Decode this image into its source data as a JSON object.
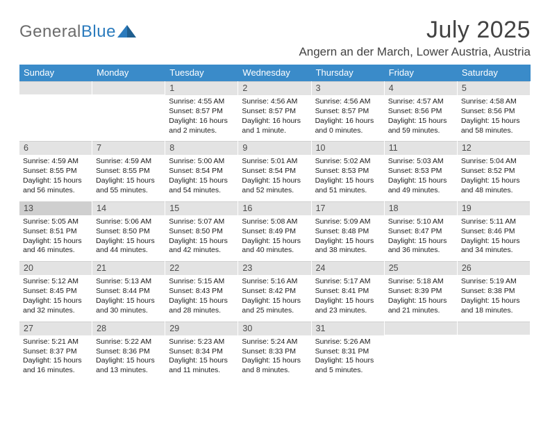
{
  "logo": {
    "text1": "General",
    "text2": "Blue"
  },
  "title": "July 2025",
  "location": "Angern an der March, Lower Austria, Austria",
  "colors": {
    "header_bg": "#3a8bc9",
    "header_text": "#ffffff",
    "daynum_bg": "#e3e3e3",
    "daynum_today_bg": "#cfcfcf",
    "logo_gray": "#6b6b6b",
    "logo_blue": "#2b7bbd",
    "text": "#1a1a1a"
  },
  "day_names": [
    "Sunday",
    "Monday",
    "Tuesday",
    "Wednesday",
    "Thursday",
    "Friday",
    "Saturday"
  ],
  "weeks": [
    [
      {
        "empty": true
      },
      {
        "empty": true
      },
      {
        "n": "1",
        "sunrise": "4:55 AM",
        "sunset": "8:57 PM",
        "daylight": "16 hours and 2 minutes."
      },
      {
        "n": "2",
        "sunrise": "4:56 AM",
        "sunset": "8:57 PM",
        "daylight": "16 hours and 1 minute."
      },
      {
        "n": "3",
        "sunrise": "4:56 AM",
        "sunset": "8:57 PM",
        "daylight": "16 hours and 0 minutes."
      },
      {
        "n": "4",
        "sunrise": "4:57 AM",
        "sunset": "8:56 PM",
        "daylight": "15 hours and 59 minutes."
      },
      {
        "n": "5",
        "sunrise": "4:58 AM",
        "sunset": "8:56 PM",
        "daylight": "15 hours and 58 minutes."
      }
    ],
    [
      {
        "n": "6",
        "sunrise": "4:59 AM",
        "sunset": "8:55 PM",
        "daylight": "15 hours and 56 minutes."
      },
      {
        "n": "7",
        "sunrise": "4:59 AM",
        "sunset": "8:55 PM",
        "daylight": "15 hours and 55 minutes."
      },
      {
        "n": "8",
        "sunrise": "5:00 AM",
        "sunset": "8:54 PM",
        "daylight": "15 hours and 54 minutes."
      },
      {
        "n": "9",
        "sunrise": "5:01 AM",
        "sunset": "8:54 PM",
        "daylight": "15 hours and 52 minutes."
      },
      {
        "n": "10",
        "sunrise": "5:02 AM",
        "sunset": "8:53 PM",
        "daylight": "15 hours and 51 minutes."
      },
      {
        "n": "11",
        "sunrise": "5:03 AM",
        "sunset": "8:53 PM",
        "daylight": "15 hours and 49 minutes."
      },
      {
        "n": "12",
        "sunrise": "5:04 AM",
        "sunset": "8:52 PM",
        "daylight": "15 hours and 48 minutes."
      }
    ],
    [
      {
        "n": "13",
        "today": true,
        "sunrise": "5:05 AM",
        "sunset": "8:51 PM",
        "daylight": "15 hours and 46 minutes."
      },
      {
        "n": "14",
        "sunrise": "5:06 AM",
        "sunset": "8:50 PM",
        "daylight": "15 hours and 44 minutes."
      },
      {
        "n": "15",
        "sunrise": "5:07 AM",
        "sunset": "8:50 PM",
        "daylight": "15 hours and 42 minutes."
      },
      {
        "n": "16",
        "sunrise": "5:08 AM",
        "sunset": "8:49 PM",
        "daylight": "15 hours and 40 minutes."
      },
      {
        "n": "17",
        "sunrise": "5:09 AM",
        "sunset": "8:48 PM",
        "daylight": "15 hours and 38 minutes."
      },
      {
        "n": "18",
        "sunrise": "5:10 AM",
        "sunset": "8:47 PM",
        "daylight": "15 hours and 36 minutes."
      },
      {
        "n": "19",
        "sunrise": "5:11 AM",
        "sunset": "8:46 PM",
        "daylight": "15 hours and 34 minutes."
      }
    ],
    [
      {
        "n": "20",
        "sunrise": "5:12 AM",
        "sunset": "8:45 PM",
        "daylight": "15 hours and 32 minutes."
      },
      {
        "n": "21",
        "sunrise": "5:13 AM",
        "sunset": "8:44 PM",
        "daylight": "15 hours and 30 minutes."
      },
      {
        "n": "22",
        "sunrise": "5:15 AM",
        "sunset": "8:43 PM",
        "daylight": "15 hours and 28 minutes."
      },
      {
        "n": "23",
        "sunrise": "5:16 AM",
        "sunset": "8:42 PM",
        "daylight": "15 hours and 25 minutes."
      },
      {
        "n": "24",
        "sunrise": "5:17 AM",
        "sunset": "8:41 PM",
        "daylight": "15 hours and 23 minutes."
      },
      {
        "n": "25",
        "sunrise": "5:18 AM",
        "sunset": "8:39 PM",
        "daylight": "15 hours and 21 minutes."
      },
      {
        "n": "26",
        "sunrise": "5:19 AM",
        "sunset": "8:38 PM",
        "daylight": "15 hours and 18 minutes."
      }
    ],
    [
      {
        "n": "27",
        "sunrise": "5:21 AM",
        "sunset": "8:37 PM",
        "daylight": "15 hours and 16 minutes."
      },
      {
        "n": "28",
        "sunrise": "5:22 AM",
        "sunset": "8:36 PM",
        "daylight": "15 hours and 13 minutes."
      },
      {
        "n": "29",
        "sunrise": "5:23 AM",
        "sunset": "8:34 PM",
        "daylight": "15 hours and 11 minutes."
      },
      {
        "n": "30",
        "sunrise": "5:24 AM",
        "sunset": "8:33 PM",
        "daylight": "15 hours and 8 minutes."
      },
      {
        "n": "31",
        "sunrise": "5:26 AM",
        "sunset": "8:31 PM",
        "daylight": "15 hours and 5 minutes."
      },
      {
        "empty": true
      },
      {
        "empty": true
      }
    ]
  ],
  "labels": {
    "sunrise": "Sunrise:",
    "sunset": "Sunset:",
    "daylight": "Daylight:"
  }
}
